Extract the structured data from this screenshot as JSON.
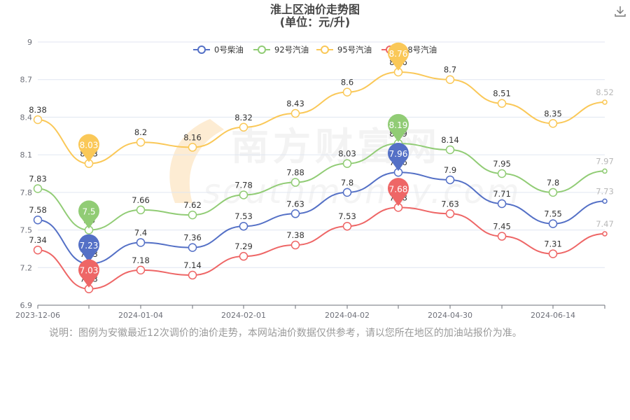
{
  "chart_data": {
    "type": "line",
    "title": "淮上区油价走势图",
    "subtitle": "(单位：元/升)",
    "x_labels": [
      "2023-12-06",
      "2024-01-04",
      "2024-02-01",
      "2024-04-02",
      "2024-04-30",
      "2024-06-14"
    ],
    "ylim": [
      6.9,
      9
    ],
    "yticks": [
      6.9,
      7.2,
      7.5,
      7.8,
      8.1,
      8.4,
      8.7,
      9
    ],
    "grid": true,
    "legend_position": "top",
    "series": [
      {
        "name": "0号柴油",
        "color": "#5470c6",
        "values": [
          7.58,
          7.23,
          7.4,
          7.36,
          7.53,
          7.63,
          7.8,
          7.96,
          7.9,
          7.71,
          7.55,
          7.73
        ],
        "pin_index": 1,
        "pin_index_2": 7
      },
      {
        "name": "92号汽油",
        "color": "#91cc75",
        "values": [
          7.83,
          7.5,
          7.66,
          7.62,
          7.78,
          7.88,
          8.03,
          8.19,
          8.14,
          7.95,
          7.8,
          7.97
        ],
        "pin_index": 1,
        "pin_index_2": 7
      },
      {
        "name": "95号汽油",
        "color": "#fac858",
        "values": [
          8.38,
          8.03,
          8.2,
          8.16,
          8.32,
          8.43,
          8.6,
          8.76,
          8.7,
          8.51,
          8.35,
          8.52
        ],
        "pin_index": 1,
        "pin_index_2": 7
      },
      {
        "name": "98号汽油",
        "color": "#ee6666",
        "values": [
          7.34,
          7.03,
          7.18,
          7.14,
          7.29,
          7.38,
          7.53,
          7.68,
          7.63,
          7.45,
          7.31,
          7.47
        ],
        "pin_index": 1,
        "pin_index_2": 7
      }
    ]
  },
  "watermark": {
    "text": "南方财富网",
    "sub_text": "southmoney.com"
  },
  "note": "说明：图例为安徽最近12次调价的油价走势，本网站油价数据仅供参考，请以您所在地区的加油站报价为准。",
  "toolbar": {
    "download_icon": "download-icon"
  }
}
